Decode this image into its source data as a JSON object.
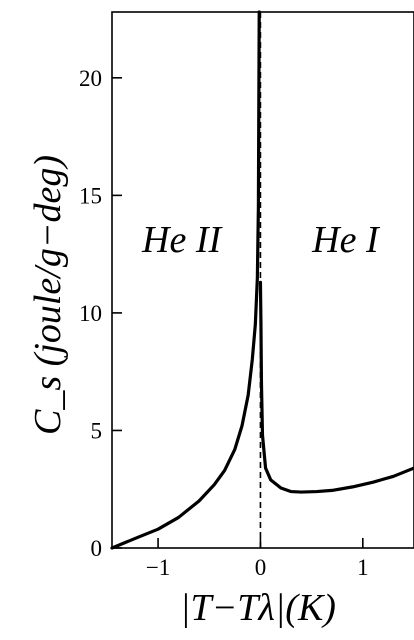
{
  "chart_data": {
    "type": "line",
    "title": "",
    "xlabel": "|T−Tλ|(K)",
    "ylabel": "C_s (joule/g−deg)",
    "xlim": [
      -1.45,
      1.5
    ],
    "ylim": [
      0,
      22.8
    ],
    "x_ticks": [
      -1,
      0,
      1
    ],
    "x_tick_labels": [
      "−1",
      "0",
      "1"
    ],
    "y_ticks": [
      0,
      5,
      10,
      15,
      20
    ],
    "y_tick_labels": [
      "0",
      "5",
      "10",
      "15",
      "20"
    ],
    "grid": false,
    "legend": "none",
    "reference_line": {
      "x": 0,
      "style": "dashed"
    },
    "annotations": [
      {
        "text": "He II",
        "x": -0.77,
        "y": 12.6
      },
      {
        "text": "He I",
        "x": 0.83,
        "y": 12.6
      }
    ],
    "series": [
      {
        "name": "",
        "color": "#000000",
        "segments": [
          {
            "x": [
              -1.45,
              -1.2,
              -1.0,
              -0.8,
              -0.6,
              -0.45,
              -0.35,
              -0.25,
              -0.18,
              -0.12,
              -0.08,
              -0.05,
              -0.03,
              -0.02,
              -0.012
            ],
            "y": [
              0.0,
              0.45,
              0.8,
              1.3,
              2.0,
              2.7,
              3.3,
              4.2,
              5.2,
              6.5,
              8.0,
              9.5,
              11.5,
              14.5,
              22.8
            ]
          },
          {
            "x": [
              0.0,
              0.005,
              0.01,
              0.02,
              0.05,
              0.1,
              0.2,
              0.3,
              0.4,
              0.55,
              0.7,
              0.9,
              1.1,
              1.3,
              1.5
            ],
            "y": [
              11.3,
              9.5,
              7.0,
              4.8,
              3.4,
              2.9,
              2.55,
              2.4,
              2.38,
              2.4,
              2.45,
              2.6,
              2.8,
              3.05,
              3.4
            ]
          }
        ]
      }
    ]
  }
}
